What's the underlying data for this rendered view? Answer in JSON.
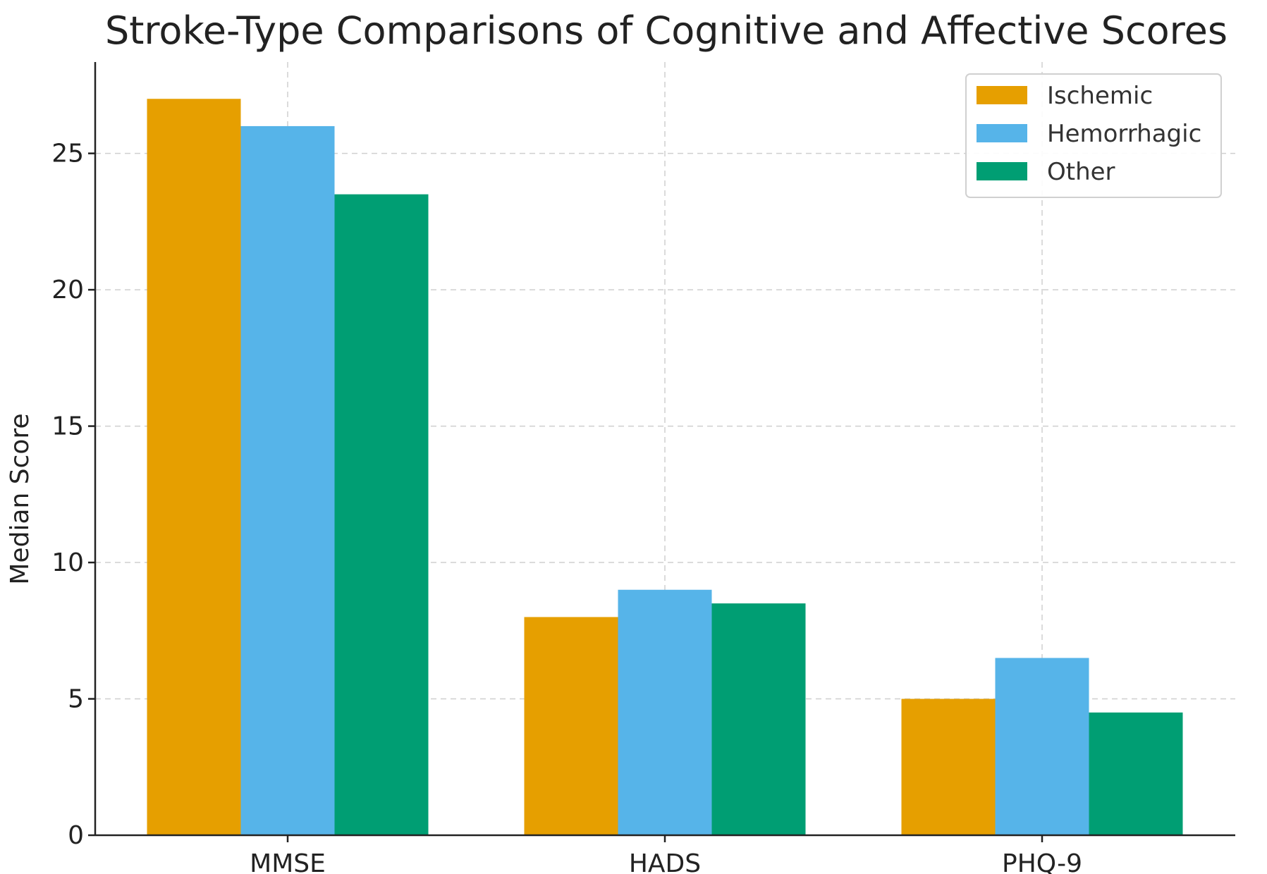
{
  "chart_data": {
    "type": "bar",
    "title": "Stroke-Type Comparisons of Cognitive and Affective Scores",
    "xlabel": "",
    "ylabel": "Median Score",
    "categories": [
      "MMSE",
      "HADS",
      "PHQ-9"
    ],
    "series": [
      {
        "name": "Ischemic",
        "color": "#E69F00",
        "values": [
          27,
          8,
          5
        ]
      },
      {
        "name": "Hemorrhagic",
        "color": "#56B4E9",
        "values": [
          26,
          9,
          6.5
        ]
      },
      {
        "name": "Other",
        "color": "#009E73",
        "values": [
          23.5,
          8.5,
          4.5
        ]
      }
    ],
    "ylim": [
      0,
      28.35
    ],
    "yticks": [
      0,
      5,
      10,
      15,
      20,
      25
    ],
    "grid": true,
    "legend_position": "top-right"
  }
}
